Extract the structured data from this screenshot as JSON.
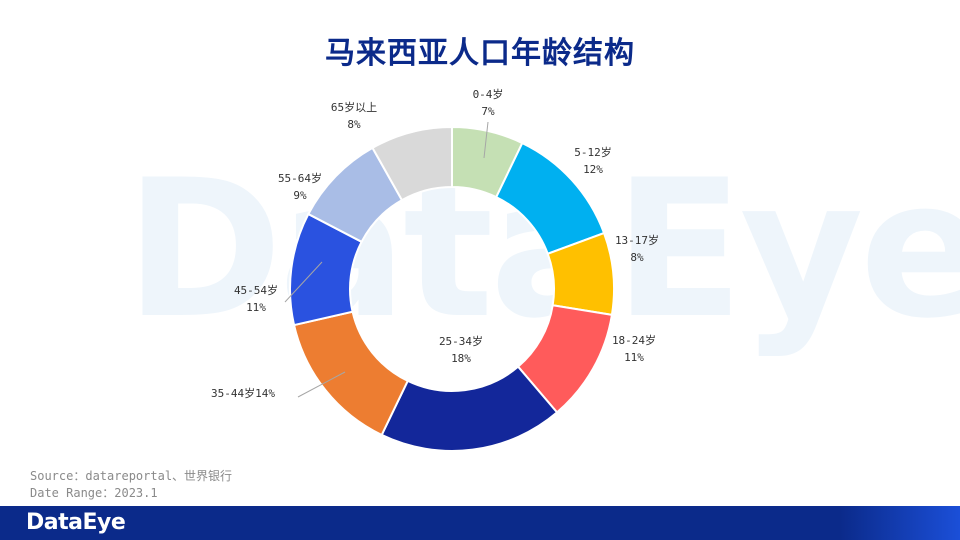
{
  "watermark": "DataEye",
  "title": "马来西亚人口年龄结构",
  "source": {
    "line1": "Source：datareportal、世界银行",
    "line2": "Date Range：2023.1"
  },
  "footer": {
    "logo": "DataEye"
  },
  "chart_data": {
    "type": "pie",
    "variant": "donut",
    "title": "马来西亚人口年龄结构",
    "unit": "%",
    "slices": [
      {
        "label": "0-4岁",
        "value": 7,
        "color": "#c5e0b4"
      },
      {
        "label": "5-12岁",
        "value": 12,
        "color": "#00b0f0"
      },
      {
        "label": "13-17岁",
        "value": 8,
        "color": "#ffc000"
      },
      {
        "label": "18-24岁",
        "value": 11,
        "color": "#ff5b5b"
      },
      {
        "label": "25-34岁",
        "value": 18,
        "color": "#13279a"
      },
      {
        "label": "35-44岁",
        "value": 14,
        "color": "#ed7d31"
      },
      {
        "label": "45-54岁",
        "value": 11,
        "color": "#2a52e0"
      },
      {
        "label": "55-64岁",
        "value": 9,
        "color": "#a9bde6"
      },
      {
        "label": "65岁以上",
        "value": 8,
        "color": "#d9d9d9"
      }
    ]
  }
}
